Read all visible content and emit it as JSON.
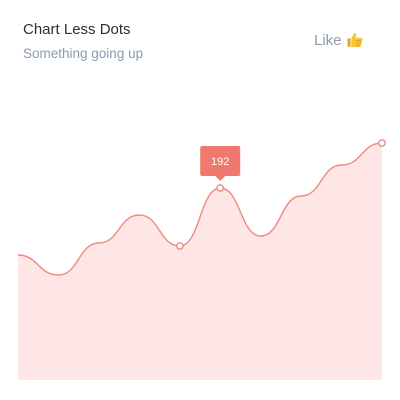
{
  "header": {
    "title": "Chart Less Dots",
    "subtitle": "Something going up",
    "like_label": "Like",
    "like_icon": "thumbs-up-icon"
  },
  "colors": {
    "line": "#f08a7e",
    "fill": "#fde6e5",
    "tooltip_bg": "#f0786c",
    "marker_fill": "#ffffff"
  },
  "chart_data": {
    "type": "area",
    "smooth": true,
    "x": [
      0,
      1,
      2,
      3,
      4,
      5,
      6,
      7,
      8,
      9
    ],
    "values": [
      125,
      105,
      137,
      165,
      134,
      192,
      144,
      184,
      215,
      237
    ],
    "highlighted_points": [
      4,
      5,
      9
    ],
    "tooltip": {
      "index": 5,
      "label": "192"
    },
    "ylim": [
      0,
      270
    ],
    "grid": false,
    "axes_visible": false
  }
}
